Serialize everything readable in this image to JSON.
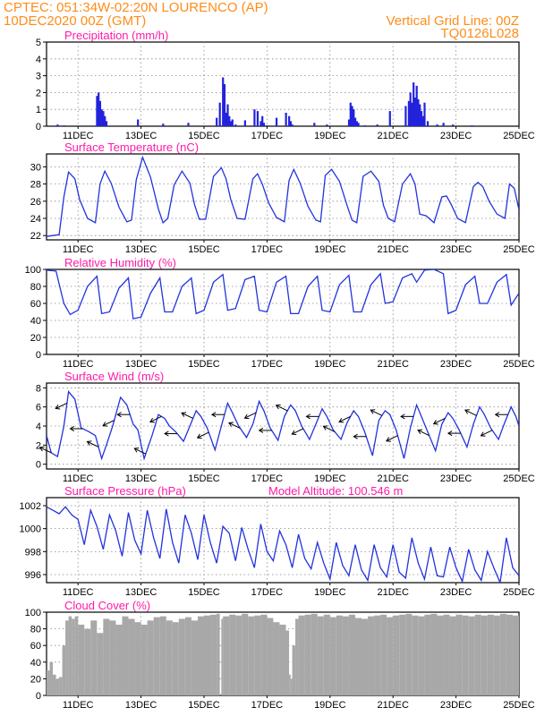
{
  "header": {
    "line1": "CPTEC:   051:34W-02:20N   LOURENCO (AP)",
    "line2": "10DEC2020 00Z (GMT)",
    "grid_note": "Vertical Grid Line: 00Z",
    "run_code": "TQ0126L028"
  },
  "colors": {
    "header": "#ff8c1a",
    "panel_title": "#ff1aa8",
    "line": "#2233dd",
    "bar": "#2222dd",
    "cloud": "#a8a8a8",
    "grid": "#8a8a8a"
  },
  "x_axis": {
    "tick_labels": [
      "11DEC",
      "13DEC",
      "15DEC",
      "17DEC",
      "19DEC",
      "21DEC",
      "23DEC",
      "25DEC"
    ],
    "tick_days": [
      11,
      13,
      15,
      17,
      19,
      21,
      23,
      25
    ],
    "range_days": [
      10,
      25
    ]
  },
  "chart_data": [
    {
      "id": "precip",
      "type": "bar",
      "title": "Precipitation (mm/h)",
      "ylim": [
        0,
        5
      ],
      "yticks": [
        0,
        1,
        2,
        3,
        4,
        5
      ],
      "grid": true,
      "x_units": "day of DEC 2020",
      "x": [
        10.35,
        10.55,
        11.6,
        11.65,
        11.7,
        11.75,
        11.8,
        11.85,
        11.9,
        12.9,
        13.7,
        14.5,
        15.4,
        15.5,
        15.6,
        15.65,
        15.7,
        15.75,
        15.8,
        15.85,
        15.9,
        16.0,
        16.3,
        16.6,
        16.7,
        16.8,
        16.85,
        16.9,
        17.0,
        17.3,
        17.6,
        17.7,
        17.75,
        17.8,
        18.5,
        18.9,
        19.6,
        19.65,
        19.7,
        19.75,
        19.8,
        19.85,
        19.9,
        20.1,
        20.5,
        20.9,
        21.4,
        21.5,
        21.55,
        21.6,
        21.65,
        21.7,
        21.75,
        21.8,
        21.85,
        21.9,
        21.95,
        22.0,
        22.1,
        22.4,
        22.6,
        22.9,
        23.5
      ],
      "values": [
        0.1,
        0.05,
        1.8,
        2.0,
        1.5,
        1.0,
        0.9,
        0.6,
        0.3,
        0.4,
        0.15,
        0.2,
        0.5,
        1.4,
        2.9,
        2.5,
        0.8,
        1.3,
        0.6,
        0.3,
        0.4,
        0.1,
        0.35,
        1.0,
        0.9,
        0.3,
        0.6,
        0.2,
        0.05,
        0.5,
        0.8,
        0.6,
        0.3,
        0.1,
        0.2,
        0.1,
        0.4,
        1.4,
        1.2,
        1.0,
        0.5,
        0.3,
        0.2,
        0.05,
        0.1,
        0.9,
        1.2,
        1.5,
        2.0,
        1.4,
        2.6,
        1.7,
        2.4,
        1.6,
        1.3,
        0.9,
        0.6,
        1.4,
        0.3,
        0.1,
        0.2,
        0.1,
        0.05
      ]
    },
    {
      "id": "temp",
      "type": "line",
      "title": "Surface Temperature (nC)",
      "ylim": [
        21.5,
        31.5
      ],
      "yticks": [
        22,
        24,
        26,
        28,
        30
      ],
      "grid": true,
      "x": [
        10.0,
        10.2,
        10.4,
        10.55,
        10.7,
        10.9,
        11.05,
        11.3,
        11.55,
        11.7,
        11.85,
        12.05,
        12.3,
        12.55,
        12.7,
        12.85,
        13.05,
        13.3,
        13.55,
        13.7,
        13.85,
        14.05,
        14.3,
        14.55,
        14.7,
        14.85,
        15.05,
        15.3,
        15.55,
        15.7,
        15.85,
        16.05,
        16.3,
        16.55,
        16.7,
        16.85,
        17.05,
        17.3,
        17.55,
        17.7,
        17.85,
        18.05,
        18.3,
        18.55,
        18.7,
        18.85,
        19.05,
        19.3,
        19.55,
        19.7,
        19.85,
        20.05,
        20.3,
        20.55,
        20.7,
        20.85,
        21.05,
        21.3,
        21.55,
        21.7,
        21.85,
        22.05,
        22.3,
        22.55,
        22.7,
        22.85,
        23.05,
        23.3,
        23.55,
        23.7,
        23.85,
        24.05,
        24.3,
        24.55,
        24.7,
        24.85,
        25.0
      ],
      "values": [
        21.9,
        22.0,
        22.1,
        26.5,
        29.4,
        28.6,
        26.2,
        24.0,
        23.5,
        28.0,
        29.5,
        28.1,
        25.3,
        23.6,
        23.8,
        28.5,
        31.1,
        28.8,
        25.1,
        23.5,
        24.0,
        27.9,
        29.5,
        28.1,
        25.6,
        23.9,
        23.9,
        28.9,
        29.9,
        28.6,
        26.2,
        24.0,
        23.9,
        28.6,
        29.2,
        28.0,
        25.8,
        24.1,
        23.6,
        28.4,
        29.7,
        28.1,
        25.4,
        23.8,
        23.6,
        29.0,
        29.7,
        28.3,
        25.4,
        23.8,
        23.5,
        28.9,
        29.5,
        28.3,
        25.5,
        24.0,
        23.6,
        28.0,
        29.2,
        28.0,
        24.5,
        24.3,
        23.5,
        26.5,
        26.6,
        25.6,
        24.0,
        23.5,
        27.7,
        28.2,
        27.7,
        26.0,
        24.5,
        24.0,
        28.0,
        27.5,
        25.0
      ]
    },
    {
      "id": "rh",
      "type": "line",
      "title": "Relative Humidity (%)",
      "ylim": [
        0,
        100
      ],
      "yticks": [
        0,
        20,
        40,
        60,
        80,
        100
      ],
      "grid": true,
      "x": [
        10.0,
        10.3,
        10.55,
        10.75,
        11.0,
        11.3,
        11.6,
        11.75,
        12.0,
        12.3,
        12.6,
        12.75,
        13.0,
        13.3,
        13.6,
        13.75,
        14.0,
        14.3,
        14.6,
        14.75,
        15.0,
        15.3,
        15.6,
        15.75,
        16.0,
        16.3,
        16.6,
        16.75,
        17.0,
        17.3,
        17.6,
        17.75,
        18.0,
        18.3,
        18.6,
        18.75,
        19.0,
        19.3,
        19.6,
        19.75,
        20.0,
        20.3,
        20.6,
        20.75,
        21.0,
        21.3,
        21.6,
        21.75,
        22.0,
        22.3,
        22.6,
        22.75,
        23.0,
        23.3,
        23.6,
        23.75,
        24.0,
        24.3,
        24.6,
        24.75,
        25.0
      ],
      "values": [
        99,
        98,
        60,
        47,
        52,
        80,
        92,
        48,
        50,
        78,
        90,
        42,
        44,
        72,
        90,
        50,
        50,
        80,
        90,
        48,
        52,
        85,
        94,
        52,
        54,
        88,
        92,
        52,
        50,
        85,
        92,
        48,
        48,
        80,
        92,
        52,
        50,
        82,
        93,
        50,
        50,
        82,
        95,
        60,
        62,
        90,
        95,
        85,
        99,
        100,
        95,
        48,
        52,
        82,
        92,
        60,
        60,
        85,
        94,
        58,
        72
      ]
    },
    {
      "id": "wind",
      "type": "line",
      "title": "Surface Wind (m/s)",
      "ylim": [
        -0.5,
        8.5
      ],
      "yticks": [
        0,
        2,
        4,
        6,
        8
      ],
      "grid": true,
      "x": [
        10.0,
        10.15,
        10.35,
        10.55,
        10.7,
        10.9,
        11.1,
        11.35,
        11.55,
        11.75,
        11.9,
        12.1,
        12.35,
        12.55,
        12.75,
        12.9,
        13.1,
        13.35,
        13.55,
        13.75,
        13.9,
        14.1,
        14.35,
        14.55,
        14.75,
        14.9,
        15.1,
        15.35,
        15.55,
        15.75,
        15.9,
        16.1,
        16.35,
        16.55,
        16.75,
        16.9,
        17.1,
        17.35,
        17.55,
        17.75,
        17.9,
        18.1,
        18.35,
        18.55,
        18.75,
        18.9,
        19.1,
        19.35,
        19.55,
        19.75,
        19.9,
        20.1,
        20.35,
        20.55,
        20.75,
        20.9,
        21.1,
        21.35,
        21.55,
        21.75,
        21.9,
        22.1,
        22.35,
        22.55,
        22.75,
        22.9,
        23.1,
        23.35,
        23.55,
        23.75,
        23.9,
        24.1,
        24.35,
        24.55,
        24.75,
        24.9,
        25.0
      ],
      "values": [
        3.0,
        1.2,
        0.8,
        4.0,
        7.6,
        6.8,
        3.8,
        3.4,
        3.0,
        0.6,
        2.0,
        4.0,
        7.0,
        6.2,
        4.2,
        3.6,
        0.6,
        3.0,
        5.2,
        4.8,
        4.0,
        3.4,
        2.4,
        4.0,
        5.6,
        5.0,
        3.8,
        1.5,
        4.0,
        6.4,
        5.4,
        4.0,
        2.8,
        4.2,
        6.6,
        5.6,
        3.8,
        2.5,
        5.0,
        6.2,
        5.6,
        4.0,
        2.6,
        4.2,
        5.8,
        5.0,
        3.6,
        2.6,
        4.4,
        5.6,
        5.0,
        3.4,
        0.9,
        4.6,
        5.6,
        5.2,
        3.6,
        0.6,
        3.8,
        6.2,
        5.0,
        3.4,
        1.4,
        4.2,
        5.4,
        4.8,
        3.6,
        1.8,
        4.2,
        6.0,
        5.2,
        3.8,
        2.6,
        4.4,
        6.0,
        5.0,
        4.0
      ],
      "arrows_note": "wind direction barbs drawn along the trace"
    },
    {
      "id": "pressure",
      "type": "line",
      "title": "Surface Pressure (hPa)",
      "annotation": "Model Altitude: 100.546 m",
      "ylim": [
        995.3,
        1002.7
      ],
      "yticks": [
        996,
        998,
        1000,
        1002
      ],
      "grid": true,
      "x": [
        10.0,
        10.2,
        10.4,
        10.6,
        10.8,
        11.0,
        11.2,
        11.4,
        11.6,
        11.8,
        12.0,
        12.2,
        12.4,
        12.6,
        12.8,
        13.0,
        13.2,
        13.4,
        13.6,
        13.8,
        14.0,
        14.2,
        14.4,
        14.6,
        14.8,
        15.0,
        15.2,
        15.4,
        15.6,
        15.8,
        16.0,
        16.2,
        16.4,
        16.6,
        16.8,
        17.0,
        17.2,
        17.4,
        17.6,
        17.8,
        18.0,
        18.2,
        18.4,
        18.6,
        18.8,
        19.0,
        19.2,
        19.4,
        19.6,
        19.8,
        20.0,
        20.2,
        20.4,
        20.6,
        20.8,
        21.0,
        21.2,
        21.4,
        21.6,
        21.8,
        22.0,
        22.2,
        22.4,
        22.6,
        22.8,
        23.0,
        23.2,
        23.4,
        23.6,
        23.8,
        24.0,
        24.2,
        24.4,
        24.6,
        24.8,
        25.0
      ],
      "values": [
        1001.9,
        1001.6,
        1001.3,
        1001.9,
        1001.2,
        1000.8,
        998.6,
        1001.6,
        1000.2,
        998.2,
        1001.2,
        999.8,
        997.6,
        1001.4,
        999.0,
        997.8,
        1001.6,
        999.2,
        997.4,
        1001.7,
        998.8,
        997.0,
        1001.2,
        999.6,
        997.3,
        1001.2,
        998.8,
        997.0,
        1000.2,
        999.6,
        997.2,
        1000.1,
        998.2,
        996.6,
        1000.4,
        998.0,
        997.2,
        999.8,
        998.6,
        996.6,
        999.5,
        997.4,
        996.5,
        998.8,
        997.0,
        995.6,
        998.8,
        996.8,
        995.9,
        998.6,
        996.4,
        995.5,
        998.6,
        996.6,
        995.8,
        998.6,
        996.2,
        995.7,
        999.2,
        997.0,
        995.6,
        998.4,
        995.9,
        995.8,
        998.4,
        996.6,
        995.4,
        998.2,
        996.4,
        995.5,
        998.0,
        996.6,
        995.3,
        999.2,
        996.6,
        995.9
      ]
    },
    {
      "id": "cloud",
      "type": "area",
      "title": "Cloud Cover (%)",
      "ylim": [
        0,
        100
      ],
      "yticks": [
        0,
        20,
        40,
        60,
        80,
        100
      ],
      "grid": true,
      "x": [
        10.0,
        10.1,
        10.2,
        10.3,
        10.4,
        10.5,
        10.6,
        10.7,
        10.8,
        10.9,
        11.0,
        11.2,
        11.4,
        11.6,
        11.8,
        12.0,
        12.2,
        12.4,
        12.6,
        12.8,
        13.0,
        13.2,
        13.4,
        13.6,
        13.8,
        14.0,
        14.2,
        14.4,
        14.6,
        14.8,
        15.0,
        15.2,
        15.4,
        15.5,
        15.55,
        15.6,
        15.8,
        16.0,
        16.2,
        16.4,
        16.6,
        16.8,
        17.0,
        17.2,
        17.4,
        17.6,
        17.7,
        17.75,
        17.8,
        17.9,
        18.0,
        18.2,
        18.4,
        18.6,
        18.8,
        19.0,
        19.2,
        19.4,
        19.6,
        19.8,
        20.0,
        20.2,
        20.4,
        20.6,
        20.8,
        21.0,
        21.2,
        21.4,
        21.6,
        21.8,
        22.0,
        22.2,
        22.4,
        22.6,
        22.8,
        23.0,
        23.2,
        23.4,
        23.6,
        23.8,
        24.0,
        24.2,
        24.4,
        24.6,
        24.8,
        25.0
      ],
      "values": [
        30,
        40,
        25,
        20,
        22,
        60,
        90,
        95,
        92,
        95,
        85,
        80,
        90,
        75,
        92,
        90,
        85,
        95,
        92,
        88,
        85,
        90,
        94,
        95,
        90,
        88,
        92,
        94,
        90,
        95,
        96,
        97,
        98,
        0,
        92,
        95,
        97,
        96,
        98,
        95,
        96,
        97,
        93,
        88,
        85,
        78,
        25,
        20,
        60,
        92,
        96,
        97,
        98,
        95,
        97,
        94,
        96,
        95,
        97,
        93,
        92,
        95,
        96,
        97,
        94,
        96,
        97,
        98,
        96,
        95,
        97,
        98,
        96,
        97,
        95,
        97,
        96,
        95,
        97,
        96,
        97,
        96,
        98,
        97,
        96,
        96
      ]
    }
  ]
}
